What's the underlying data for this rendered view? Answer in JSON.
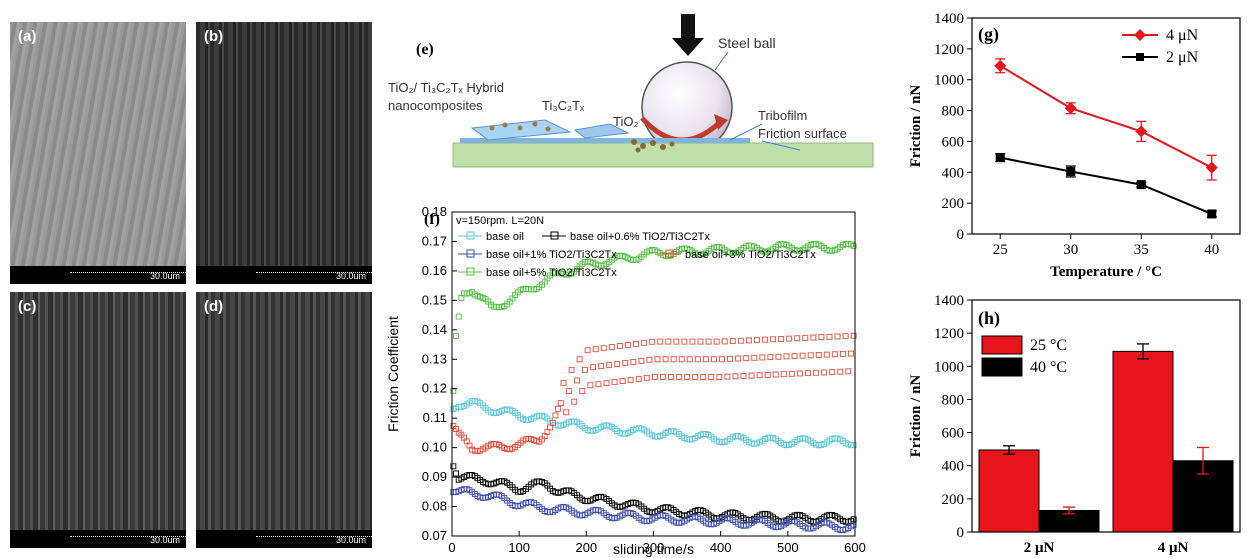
{
  "sem_panels": [
    {
      "label": "(a)",
      "scale": "30.0um",
      "tone": "#8f8f8f"
    },
    {
      "label": "(b)",
      "scale": "30.0um",
      "tone": "#2e2e2e"
    },
    {
      "label": "(c)",
      "scale": "30.0um",
      "tone": "#444444"
    },
    {
      "label": "(d)",
      "scale": "30.0um",
      "tone": "#3a3a3a"
    }
  ],
  "schematic": {
    "label": "(e)",
    "steel_ball": "Steel ball",
    "hybrid_line1": "TiO₂/ Ti₃C₂Tₓ Hybrid",
    "hybrid_line2": "nanocomposites",
    "ti3c2tx": "Ti₃C₂Tₓ",
    "tio2": "TiO₂",
    "tribofilm": "Tribofilm",
    "friction_surface": "Friction surface"
  },
  "chart_data": [
    {
      "id": "f",
      "type": "line",
      "label": "(f)",
      "annotation": "v=150rpm. L=20N",
      "xlabel": "sliding time/s",
      "ylabel": "Friction Coefficient",
      "xlim": [
        0,
        600
      ],
      "ylim": [
        0.07,
        0.18
      ],
      "xticks": [
        0,
        100,
        200,
        300,
        400,
        500,
        600
      ],
      "yticks": [
        0.07,
        0.08,
        0.09,
        0.1,
        0.11,
        0.12,
        0.13,
        0.14,
        0.15,
        0.16,
        0.17,
        0.18
      ],
      "legend_position": "top",
      "series": [
        {
          "name": "base oil",
          "color": "#5bc8d8",
          "x": [
            0,
            10,
            30,
            60,
            100,
            150,
            200,
            300,
            400,
            500,
            600
          ],
          "y": [
            0.113,
            0.115,
            0.115,
            0.113,
            0.111,
            0.109,
            0.107,
            0.105,
            0.103,
            0.102,
            0.102
          ]
        },
        {
          "name": "base oil+0.6% TiO2/Ti3C2Tx",
          "color": "#000000",
          "x": [
            0,
            10,
            50,
            100,
            140,
            160,
            200,
            300,
            400,
            500,
            600
          ],
          "y": [
            0.096,
            0.09,
            0.089,
            0.086,
            0.088,
            0.085,
            0.083,
            0.079,
            0.077,
            0.076,
            0.076
          ]
        },
        {
          "name": "base oil+1% TiO2/Ti3C2Tx",
          "color": "#3d4cb0",
          "x": [
            0,
            10,
            50,
            100,
            150,
            200,
            300,
            400,
            500,
            600
          ],
          "y": [
            0.086,
            0.085,
            0.084,
            0.081,
            0.079,
            0.078,
            0.076,
            0.075,
            0.074,
            0.073
          ]
        },
        {
          "name": "base oil+3% TiO2/Ti3C2Tx",
          "color": "#e84b3a",
          "x": [
            0,
            10,
            30,
            60,
            100,
            130,
            150,
            170,
            200,
            300,
            400,
            500,
            600
          ],
          "y": [
            0.108,
            0.104,
            0.1,
            0.1,
            0.101,
            0.103,
            0.108,
            0.118,
            0.127,
            0.13,
            0.13,
            0.131,
            0.132
          ],
          "oscillation": 0.006
        },
        {
          "name": "base oil+5% TiO2/Ti3C2Tx",
          "color": "#4fbf3f",
          "x": [
            0,
            5,
            15,
            30,
            60,
            100,
            150,
            200,
            300,
            400,
            500,
            600
          ],
          "y": [
            0.107,
            0.135,
            0.152,
            0.154,
            0.147,
            0.152,
            0.158,
            0.162,
            0.166,
            0.167,
            0.168,
            0.168
          ]
        }
      ]
    },
    {
      "id": "g",
      "type": "line",
      "label": "(g)",
      "xlabel": "Temperature / °C",
      "ylabel": "Friction / nN",
      "xlim": [
        23,
        42
      ],
      "ylim": [
        0,
        1400
      ],
      "xticks": [
        25,
        30,
        35,
        40
      ],
      "yticks": [
        0,
        200,
        400,
        600,
        800,
        1000,
        1200,
        1400
      ],
      "legend_position": "top-right",
      "series": [
        {
          "name": "4 μN",
          "color": "#e8141b",
          "marker": "diamond",
          "x": [
            25,
            30,
            35,
            40
          ],
          "y": [
            1090,
            815,
            665,
            430
          ],
          "err": [
            45,
            35,
            65,
            80
          ]
        },
        {
          "name": "2 μN",
          "color": "#000000",
          "marker": "square",
          "x": [
            25,
            30,
            35,
            40
          ],
          "y": [
            495,
            405,
            320,
            130
          ],
          "err": [
            25,
            35,
            15,
            20
          ]
        }
      ]
    },
    {
      "id": "h",
      "type": "bar",
      "label": "(h)",
      "ylabel": "Friction / nN",
      "categories": [
        "2 μN",
        "4 μN"
      ],
      "ylim": [
        0,
        1400
      ],
      "yticks": [
        0,
        200,
        400,
        600,
        800,
        1000,
        1200,
        1400
      ],
      "legend_position": "top-left",
      "series": [
        {
          "name": "25 °C",
          "color": "#e8141b",
          "values": [
            495,
            1090
          ],
          "err": [
            25,
            45
          ]
        },
        {
          "name": "40 °C",
          "color": "#000000",
          "values": [
            130,
            430
          ],
          "err": [
            20,
            80
          ]
        }
      ]
    }
  ]
}
